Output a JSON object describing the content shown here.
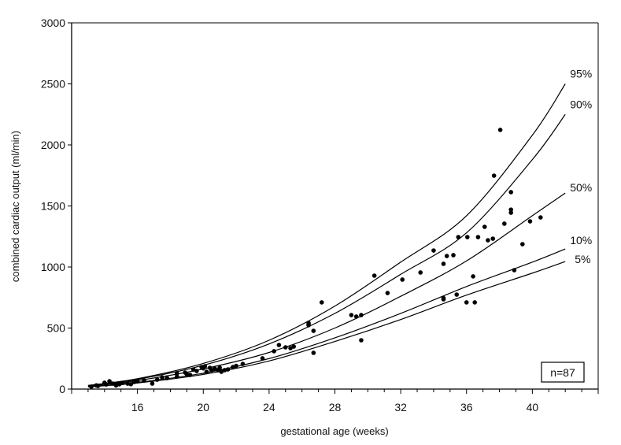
{
  "chart_data": {
    "type": "scatter",
    "title": "",
    "xlabel": "gestational age (weeks)",
    "ylabel": "combined cardiac output (ml/min)",
    "xlim": [
      12,
      44
    ],
    "ylim": [
      0,
      3000
    ],
    "xticks": [
      16,
      20,
      24,
      28,
      32,
      36,
      40
    ],
    "yticks": [
      0,
      500,
      1000,
      1500,
      2000,
      2500,
      3000
    ],
    "grid": false,
    "annotation": "n=87",
    "centile_curves": [
      {
        "name": "95%",
        "x": [
          13,
          16,
          20,
          24,
          28,
          32,
          36,
          40,
          42
        ],
        "y": [
          30,
          85,
          210,
          400,
          680,
          1040,
          1420,
          2080,
          2500
        ]
      },
      {
        "name": "90%",
        "x": [
          13,
          16,
          20,
          24,
          28,
          32,
          36,
          40,
          42
        ],
        "y": [
          28,
          80,
          195,
          370,
          620,
          940,
          1280,
          1880,
          2250
        ]
      },
      {
        "name": "50%",
        "x": [
          13,
          16,
          20,
          24,
          28,
          32,
          36,
          40,
          42
        ],
        "y": [
          25,
          70,
          165,
          300,
          500,
          760,
          1050,
          1420,
          1606
        ]
      },
      {
        "name": "10%",
        "x": [
          13,
          16,
          20,
          24,
          28,
          32,
          36,
          40,
          42
        ],
        "y": [
          20,
          55,
          130,
          250,
          420,
          620,
          840,
          1040,
          1148
        ]
      },
      {
        "name": "5%",
        "x": [
          13,
          16,
          20,
          24,
          28,
          32,
          36,
          40,
          42
        ],
        "y": [
          18,
          50,
          120,
          230,
          390,
          570,
          770,
          950,
          1045
        ]
      }
    ],
    "points": [
      [
        38.05,
        2123
      ],
      [
        37.67,
        1748
      ],
      [
        38.7,
        1613
      ],
      [
        38.7,
        1470
      ],
      [
        38.7,
        1445
      ],
      [
        37.1,
        1329
      ],
      [
        38.3,
        1355
      ],
      [
        37.3,
        1219
      ],
      [
        37.6,
        1232
      ],
      [
        36.7,
        1245
      ],
      [
        36.05,
        1245
      ],
      [
        35.5,
        1245
      ],
      [
        34.0,
        1135
      ],
      [
        35.2,
        1097
      ],
      [
        34.8,
        1090
      ],
      [
        39.86,
        1374
      ],
      [
        40.5,
        1406
      ],
      [
        39.4,
        1187
      ],
      [
        38.9,
        974
      ],
      [
        36.4,
        923
      ],
      [
        34.6,
        1026
      ],
      [
        34.6,
        745
      ],
      [
        34.6,
        735
      ],
      [
        35.4,
        774
      ],
      [
        36.0,
        710
      ],
      [
        36.5,
        710
      ],
      [
        33.2,
        955
      ],
      [
        32.1,
        897
      ],
      [
        31.2,
        787
      ],
      [
        30.4,
        929
      ],
      [
        29.0,
        606
      ],
      [
        29.6,
        606
      ],
      [
        29.3,
        594
      ],
      [
        29.6,
        400
      ],
      [
        27.2,
        710
      ],
      [
        26.4,
        542
      ],
      [
        26.4,
        523
      ],
      [
        26.4,
        530
      ],
      [
        26.7,
        477
      ],
      [
        26.7,
        297
      ],
      [
        24.6,
        361
      ],
      [
        24.3,
        310
      ],
      [
        23.6,
        252
      ],
      [
        25.0,
        342
      ],
      [
        25.3,
        335
      ],
      [
        25.5,
        348
      ],
      [
        22.4,
        206
      ],
      [
        21.8,
        180
      ],
      [
        21.5,
        161
      ],
      [
        21.3,
        155
      ],
      [
        21.1,
        142
      ],
      [
        20.9,
        155
      ],
      [
        20.7,
        168
      ],
      [
        20.5,
        155
      ],
      [
        20.4,
        174
      ],
      [
        20.2,
        142
      ],
      [
        20.1,
        187
      ],
      [
        19.9,
        180
      ],
      [
        19.6,
        148
      ],
      [
        19.2,
        116
      ],
      [
        19.0,
        122
      ],
      [
        18.4,
        103
      ],
      [
        18.4,
        130
      ],
      [
        17.8,
        90
      ],
      [
        17.2,
        77
      ],
      [
        16.9,
        45
      ],
      [
        16.4,
        70
      ],
      [
        15.8,
        58
      ],
      [
        15.4,
        45
      ],
      [
        14.9,
        39
      ],
      [
        14.5,
        45
      ],
      [
        14.3,
        64
      ],
      [
        14.1,
        38
      ],
      [
        14.0,
        52
      ],
      [
        13.6,
        26
      ],
      [
        13.2,
        19
      ],
      [
        13.5,
        30
      ],
      [
        15.1,
        50
      ],
      [
        16.0,
        64
      ],
      [
        17.5,
        96
      ],
      [
        18.9,
        135
      ],
      [
        19.4,
        160
      ],
      [
        20.0,
        170
      ],
      [
        21.0,
        175
      ],
      [
        22.0,
        190
      ],
      [
        15.6,
        40
      ],
      [
        14.7,
        30
      ]
    ]
  }
}
